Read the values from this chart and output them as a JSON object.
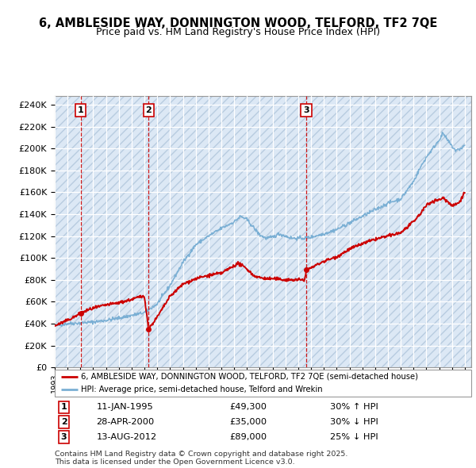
{
  "title_line1": "6, AMBLESIDE WAY, DONNINGTON WOOD, TELFORD, TF2 7QE",
  "title_line2": "Price paid vs. HM Land Registry's House Price Index (HPI)",
  "yticks": [
    0,
    20000,
    40000,
    60000,
    80000,
    100000,
    120000,
    140000,
    160000,
    180000,
    200000,
    220000,
    240000
  ],
  "ytick_labels": [
    "£0",
    "£20K",
    "£40K",
    "£60K",
    "£80K",
    "£100K",
    "£120K",
    "£140K",
    "£160K",
    "£180K",
    "£200K",
    "£220K",
    "£240K"
  ],
  "sale_events": [
    {
      "date_label": "11-JAN-1995",
      "year": 1995.03,
      "price": 49300,
      "num": "1",
      "pct": "30% ↑ HPI"
    },
    {
      "date_label": "28-APR-2000",
      "year": 2000.32,
      "price": 35000,
      "num": "2",
      "pct": "30% ↓ HPI"
    },
    {
      "date_label": "13-AUG-2012",
      "year": 2012.62,
      "price": 89000,
      "num": "3",
      "pct": "25% ↓ HPI"
    }
  ],
  "legend_line1": "6, AMBLESIDE WAY, DONNINGTON WOOD, TELFORD, TF2 7QE (semi-detached house)",
  "legend_line2": "HPI: Average price, semi-detached house, Telford and Wrekin",
  "footnote": "Contains HM Land Registry data © Crown copyright and database right 2025.\nThis data is licensed under the Open Government Licence v3.0.",
  "red_color": "#cc0000",
  "blue_color": "#7aafd4",
  "bg_color": "#dce8f5",
  "grid_color": "#ffffff",
  "table_data": [
    [
      "1",
      "11-JAN-1995",
      "£49,300",
      "30% ↑ HPI"
    ],
    [
      "2",
      "28-APR-2000",
      "£35,000",
      "30% ↓ HPI"
    ],
    [
      "3",
      "13-AUG-2012",
      "£89,000",
      "25% ↓ HPI"
    ]
  ]
}
